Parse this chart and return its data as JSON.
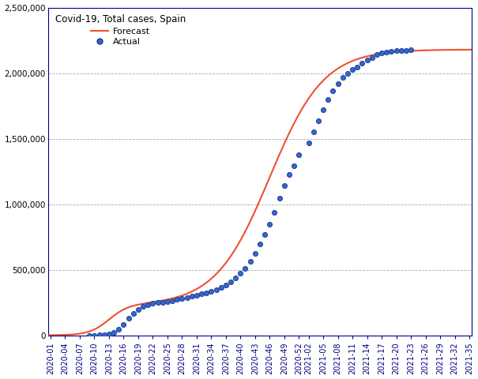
{
  "title": "Covid-19, Total cases, Spain",
  "forecast_label": "Forecast",
  "actual_label": "Actual",
  "forecast_color": "#f05030",
  "actual_color": "#1a3a8a",
  "actual_face_color": "#3366cc",
  "background_color": "#ffffff",
  "grid_color": "#888888",
  "ylim": [
    0,
    2500000
  ],
  "yticks": [
    0,
    500000,
    1000000,
    1500000,
    2000000,
    2500000
  ],
  "xtick_labels": [
    "2020-01",
    "2020-04",
    "2020-07",
    "2020-10",
    "2020-13",
    "2020-16",
    "2020-19",
    "2020-22",
    "2020-25",
    "2020-28",
    "2020-31",
    "2020-34",
    "2020-37",
    "2020-40",
    "2020-43",
    "2020-46",
    "2020-49",
    "2020-52",
    "2021-02",
    "2021-05",
    "2021-08",
    "2021-11",
    "2021-14",
    "2021-17",
    "2021-20",
    "2021-23",
    "2021-26",
    "2021-29",
    "2021-32",
    "2021-35"
  ],
  "actual_x": [
    8,
    9,
    10,
    11,
    12,
    13,
    14,
    15,
    16,
    17,
    18,
    19,
    20,
    21,
    22,
    23,
    24,
    25,
    26,
    27,
    28,
    29,
    30,
    31,
    32,
    33,
    34,
    35,
    36,
    37,
    38,
    39,
    40,
    41,
    42,
    43,
    44,
    45,
    46,
    47,
    48,
    49,
    50,
    51,
    53,
    54,
    55,
    56,
    57,
    58,
    59,
    60,
    61,
    62,
    63,
    64,
    65,
    66,
    67,
    68,
    69,
    70,
    71,
    72,
    73,
    74
  ],
  "actual_values": [
    430,
    999,
    2277,
    5232,
    11748,
    24926,
    47610,
    85195,
    130759,
    166831,
    198674,
    220325,
    234824,
    244683,
    248970,
    253908,
    258855,
    264663,
    272421,
    280610,
    288522,
    297054,
    305767,
    314362,
    323284,
    334175,
    348324,
    364848,
    386054,
    408844,
    437866,
    471480,
    510799,
    561820,
    624390,
    694049,
    770394,
    849527,
    936413,
    1045009,
    1143680,
    1228193,
    1295040,
    1378845,
    1470222,
    1553903,
    1636798,
    1718455,
    1797285,
    1865460,
    1921040,
    1965948,
    1999472,
    2027746,
    2048201,
    2073341,
    2100000,
    2120000,
    2140000,
    2155000,
    2163000,
    2168000,
    2171000,
    2173000,
    2175000,
    2176000
  ],
  "spine_color": "#000080",
  "tick_color": "#000080"
}
